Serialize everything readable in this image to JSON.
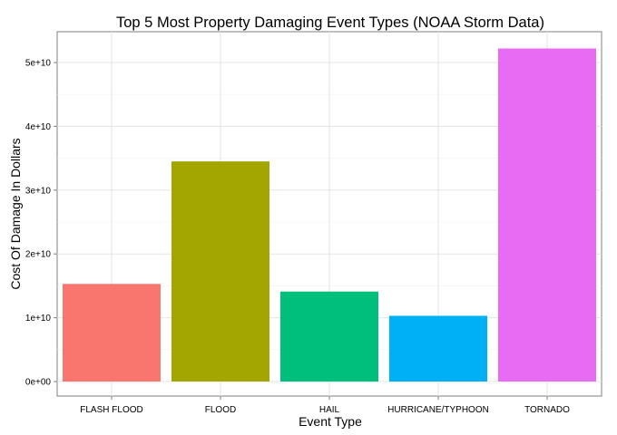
{
  "chart_data": {
    "type": "bar",
    "title": "Top 5 Most Property Damaging Event Types (NOAA Storm Data)",
    "xlabel": "Event Type",
    "ylabel": "Cost Of Damage In Dollars",
    "categories": [
      "FLASH FLOOD",
      "FLOOD",
      "HAIL",
      "HURRICANE/TYPHOON",
      "TORNADO"
    ],
    "values": [
      15300000000,
      34500000000,
      14100000000,
      10300000000,
      52200000000
    ],
    "colors": [
      "#F8766D",
      "#A3A500",
      "#00BF7D",
      "#00B0F6",
      "#E76BF3"
    ],
    "ylim": [
      0,
      55000000000
    ],
    "yticks": [
      0,
      10000000000,
      20000000000,
      30000000000,
      40000000000,
      50000000000
    ],
    "ytick_labels": [
      "0e+00",
      "1e+10",
      "2e+10",
      "3e+10",
      "4e+10",
      "5e+10"
    ],
    "grid": true,
    "legend": "none"
  }
}
